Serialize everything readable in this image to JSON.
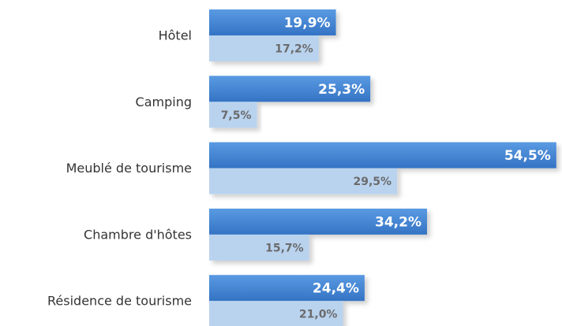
{
  "chart_data": {
    "type": "bar",
    "orientation": "horizontal",
    "categories": [
      "Hôtel",
      "Camping",
      "Meublé de tourisme",
      "Chambre d'hôtes",
      "Résidence de tourisme"
    ],
    "series": [
      {
        "color": "#3f83d3",
        "values": [
          19.9,
          25.3,
          54.5,
          34.2,
          24.4
        ],
        "value_labels": [
          "19,9%",
          "25,3%",
          "54,5%",
          "34,2%",
          "24,4%"
        ]
      },
      {
        "color": "#b9d3ef",
        "values": [
          17.2,
          7.5,
          29.5,
          15.7,
          21.0
        ],
        "value_labels": [
          "17,2%",
          "7,5%",
          "29,5%",
          "15,7%",
          "21,0%"
        ]
      }
    ]
  }
}
